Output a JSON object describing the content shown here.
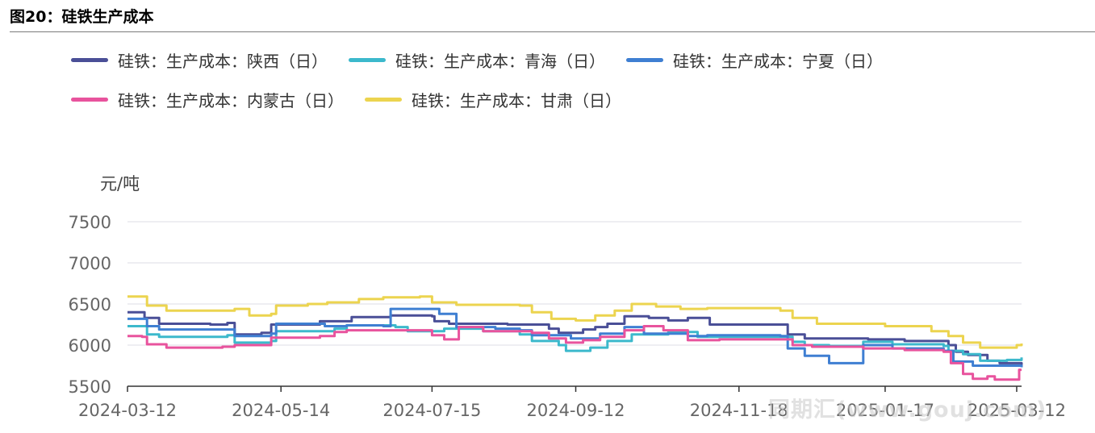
{
  "figure_title": "图20：硅铁生产成本",
  "watermark": "同期汇(www.gouj.com)",
  "chart_data": {
    "type": "line",
    "ylabel": "元/吨",
    "ylim": [
      5500,
      7500
    ],
    "yticks": [
      5500,
      6000,
      6500,
      7000,
      7500
    ],
    "xlim": [
      "2024-03-12",
      "2025-03-14"
    ],
    "xticks": [
      "2024-03-12",
      "2024-05-14",
      "2024-07-15",
      "2024-09-12",
      "2024-11-18",
      "2025-01-17",
      "2025-03-12"
    ],
    "grid": true,
    "legend_position": "top",
    "series": [
      {
        "name": "硅铁：生产成本：陕西（日）",
        "color": "#4a4f97",
        "points": [
          [
            "2024-03-12",
            6400
          ],
          [
            "2024-03-18",
            6400
          ],
          [
            "2024-03-19",
            6330
          ],
          [
            "2024-03-25",
            6260
          ],
          [
            "2024-04-15",
            6250
          ],
          [
            "2024-04-22",
            6270
          ],
          [
            "2024-04-25",
            6130
          ],
          [
            "2024-05-06",
            6150
          ],
          [
            "2024-05-10",
            6250
          ],
          [
            "2024-05-30",
            6290
          ],
          [
            "2024-06-10",
            6290
          ],
          [
            "2024-06-12",
            6340
          ],
          [
            "2024-06-25",
            6340
          ],
          [
            "2024-06-28",
            6360
          ],
          [
            "2024-07-15",
            6350
          ],
          [
            "2024-07-16",
            6290
          ],
          [
            "2024-07-22",
            6260
          ],
          [
            "2024-08-15",
            6250
          ],
          [
            "2024-09-01",
            6200
          ],
          [
            "2024-09-05",
            6150
          ],
          [
            "2024-09-12",
            6150
          ],
          [
            "2024-09-15",
            6190
          ],
          [
            "2024-09-20",
            6220
          ],
          [
            "2024-09-25",
            6260
          ],
          [
            "2024-10-02",
            6350
          ],
          [
            "2024-10-12",
            6330
          ],
          [
            "2024-10-20",
            6300
          ],
          [
            "2024-10-28",
            6330
          ],
          [
            "2024-11-05",
            6330
          ],
          [
            "2024-11-06",
            6250
          ],
          [
            "2024-12-05",
            6250
          ],
          [
            "2024-12-08",
            6130
          ],
          [
            "2024-12-15",
            6080
          ],
          [
            "2025-01-10",
            6070
          ],
          [
            "2025-01-25",
            6050
          ],
          [
            "2025-02-12",
            6000
          ],
          [
            "2025-02-15",
            5920
          ],
          [
            "2025-02-20",
            5880
          ],
          [
            "2025-02-28",
            5810
          ],
          [
            "2025-03-05",
            5780
          ],
          [
            "2025-03-14",
            5760
          ]
        ]
      },
      {
        "name": "硅铁：生产成本：青海（日）",
        "color": "#3cb9cc",
        "points": [
          [
            "2024-03-12",
            6230
          ],
          [
            "2024-03-18",
            6230
          ],
          [
            "2024-03-20",
            6130
          ],
          [
            "2024-03-25",
            6100
          ],
          [
            "2024-04-10",
            6100
          ],
          [
            "2024-04-22",
            6120
          ],
          [
            "2024-04-25",
            6030
          ],
          [
            "2024-05-10",
            6050
          ],
          [
            "2024-05-12",
            6170
          ],
          [
            "2024-06-05",
            6200
          ],
          [
            "2024-06-10",
            6240
          ],
          [
            "2024-06-30",
            6220
          ],
          [
            "2024-07-05",
            6170
          ],
          [
            "2024-07-20",
            6200
          ],
          [
            "2024-08-05",
            6170
          ],
          [
            "2024-08-20",
            6130
          ],
          [
            "2024-08-25",
            6050
          ],
          [
            "2024-09-05",
            6000
          ],
          [
            "2024-09-08",
            5930
          ],
          [
            "2024-09-18",
            5970
          ],
          [
            "2024-09-25",
            6050
          ],
          [
            "2024-10-05",
            6130
          ],
          [
            "2024-10-20",
            6160
          ],
          [
            "2024-11-01",
            6100
          ],
          [
            "2024-12-05",
            6100
          ],
          [
            "2024-12-10",
            6040
          ],
          [
            "2024-12-15",
            6000
          ],
          [
            "2024-12-25",
            5990
          ],
          [
            "2025-01-08",
            6040
          ],
          [
            "2025-01-20",
            6010
          ],
          [
            "2025-02-10",
            5990
          ],
          [
            "2025-02-12",
            5930
          ],
          [
            "2025-02-18",
            5890
          ],
          [
            "2025-02-25",
            5810
          ],
          [
            "2025-03-08",
            5820
          ],
          [
            "2025-03-14",
            5850
          ]
        ]
      },
      {
        "name": "硅铁：生产成本：宁夏（日）",
        "color": "#3f7fd2",
        "points": [
          [
            "2024-03-12",
            6320
          ],
          [
            "2024-03-18",
            6320
          ],
          [
            "2024-03-20",
            6230
          ],
          [
            "2024-03-25",
            6190
          ],
          [
            "2024-04-20",
            6190
          ],
          [
            "2024-04-25",
            6110
          ],
          [
            "2024-05-10",
            6140
          ],
          [
            "2024-05-12",
            6260
          ],
          [
            "2024-06-01",
            6230
          ],
          [
            "2024-06-10",
            6240
          ],
          [
            "2024-06-25",
            6230
          ],
          [
            "2024-06-28",
            6440
          ],
          [
            "2024-07-15",
            6440
          ],
          [
            "2024-07-18",
            6380
          ],
          [
            "2024-07-25",
            6220
          ],
          [
            "2024-08-10",
            6200
          ],
          [
            "2024-08-20",
            6180
          ],
          [
            "2024-08-25",
            6120
          ],
          [
            "2024-09-10",
            6080
          ],
          [
            "2024-09-22",
            6140
          ],
          [
            "2024-10-02",
            6220
          ],
          [
            "2024-10-10",
            6140
          ],
          [
            "2024-10-28",
            6110
          ],
          [
            "2024-11-05",
            6120
          ],
          [
            "2024-12-05",
            6110
          ],
          [
            "2024-12-08",
            5960
          ],
          [
            "2024-12-15",
            5870
          ],
          [
            "2024-12-25",
            5780
          ],
          [
            "2025-01-08",
            6000
          ],
          [
            "2025-01-20",
            5960
          ],
          [
            "2025-02-10",
            5930
          ],
          [
            "2025-02-14",
            5800
          ],
          [
            "2025-02-22",
            5750
          ],
          [
            "2025-03-14",
            5730
          ]
        ]
      },
      {
        "name": "硅铁：生产成本：内蒙古（日）",
        "color": "#e8539d",
        "points": [
          [
            "2024-03-12",
            6110
          ],
          [
            "2024-03-18",
            6100
          ],
          [
            "2024-03-20",
            6010
          ],
          [
            "2024-03-28",
            5970
          ],
          [
            "2024-04-20",
            5980
          ],
          [
            "2024-04-25",
            6000
          ],
          [
            "2024-05-10",
            6090
          ],
          [
            "2024-05-30",
            6110
          ],
          [
            "2024-06-05",
            6160
          ],
          [
            "2024-06-10",
            6180
          ],
          [
            "2024-07-05",
            6180
          ],
          [
            "2024-07-15",
            6120
          ],
          [
            "2024-07-20",
            6070
          ],
          [
            "2024-07-26",
            6220
          ],
          [
            "2024-08-05",
            6170
          ],
          [
            "2024-08-25",
            6150
          ],
          [
            "2024-09-01",
            6080
          ],
          [
            "2024-09-08",
            6030
          ],
          [
            "2024-09-15",
            6060
          ],
          [
            "2024-09-22",
            6100
          ],
          [
            "2024-10-02",
            6180
          ],
          [
            "2024-10-10",
            6230
          ],
          [
            "2024-10-18",
            6180
          ],
          [
            "2024-10-28",
            6060
          ],
          [
            "2024-11-10",
            6070
          ],
          [
            "2024-12-05",
            6070
          ],
          [
            "2024-12-10",
            6000
          ],
          [
            "2024-12-18",
            5980
          ],
          [
            "2025-01-08",
            5960
          ],
          [
            "2025-01-25",
            5940
          ],
          [
            "2025-02-10",
            5920
          ],
          [
            "2025-02-13",
            5780
          ],
          [
            "2025-02-18",
            5650
          ],
          [
            "2025-02-22",
            5590
          ],
          [
            "2025-02-28",
            5620
          ],
          [
            "2025-03-03",
            5580
          ],
          [
            "2025-03-12",
            5580
          ],
          [
            "2025-03-13",
            5700
          ],
          [
            "2025-03-14",
            5700
          ]
        ]
      },
      {
        "name": "硅铁：生产成本：甘肃（日）",
        "color": "#ecd44f",
        "points": [
          [
            "2024-03-12",
            6590
          ],
          [
            "2024-03-18",
            6590
          ],
          [
            "2024-03-20",
            6480
          ],
          [
            "2024-03-28",
            6420
          ],
          [
            "2024-04-25",
            6440
          ],
          [
            "2024-05-01",
            6360
          ],
          [
            "2024-05-10",
            6380
          ],
          [
            "2024-05-12",
            6480
          ],
          [
            "2024-05-25",
            6500
          ],
          [
            "2024-06-02",
            6520
          ],
          [
            "2024-06-15",
            6560
          ],
          [
            "2024-06-25",
            6580
          ],
          [
            "2024-07-10",
            6590
          ],
          [
            "2024-07-15",
            6520
          ],
          [
            "2024-07-22",
            6520
          ],
          [
            "2024-07-25",
            6490
          ],
          [
            "2024-08-20",
            6480
          ],
          [
            "2024-08-25",
            6400
          ],
          [
            "2024-09-02",
            6320
          ],
          [
            "2024-09-12",
            6300
          ],
          [
            "2024-09-20",
            6360
          ],
          [
            "2024-09-28",
            6420
          ],
          [
            "2024-10-05",
            6500
          ],
          [
            "2024-10-15",
            6470
          ],
          [
            "2024-10-25",
            6440
          ],
          [
            "2024-11-05",
            6450
          ],
          [
            "2024-12-01",
            6450
          ],
          [
            "2024-12-05",
            6420
          ],
          [
            "2024-12-10",
            6330
          ],
          [
            "2024-12-20",
            6260
          ],
          [
            "2025-01-17",
            6230
          ],
          [
            "2025-02-05",
            6170
          ],
          [
            "2025-02-12",
            6110
          ],
          [
            "2025-02-18",
            6030
          ],
          [
            "2025-02-25",
            5970
          ],
          [
            "2025-03-12",
            6000
          ],
          [
            "2025-03-14",
            6020
          ]
        ]
      }
    ]
  }
}
